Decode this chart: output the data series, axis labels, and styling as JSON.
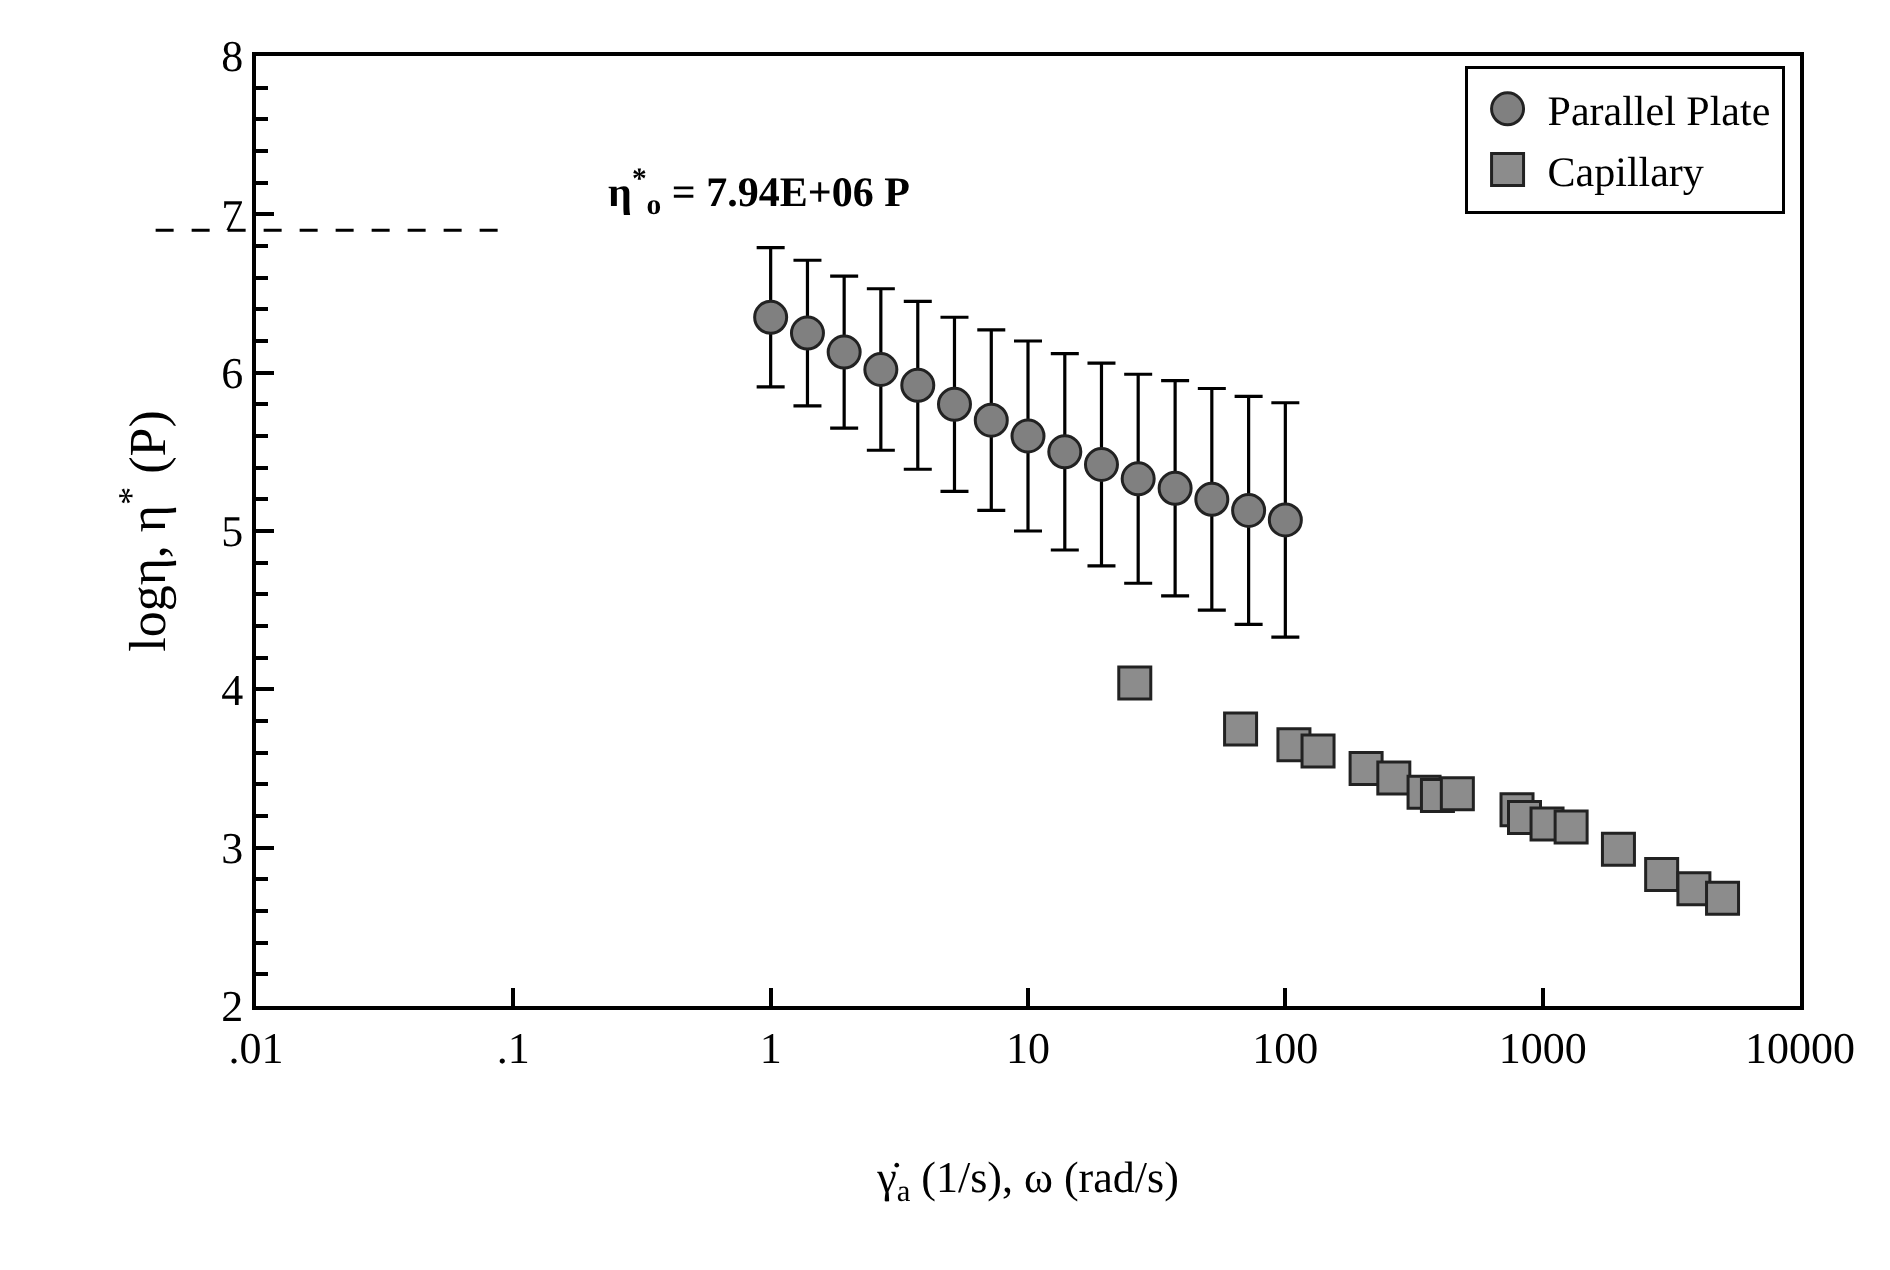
{
  "chart_data": {
    "type": "scatter",
    "xlabel": "γ̇$_{a}$ (1/s), ω (rad/s)",
    "ylabel": "logη, η$^{*}$ (P)",
    "log": "x",
    "xlim": [
      0.01,
      10000
    ],
    "ylim": [
      2,
      8
    ],
    "xticks": [
      {
        "value": 0.01,
        "label": ".01"
      },
      {
        "value": 0.1,
        "label": ".1"
      },
      1,
      10,
      100,
      1000,
      10000
    ],
    "yticks": [
      2,
      3,
      4,
      5,
      6,
      7,
      8
    ],
    "legend": "top right",
    "annotations": [
      "η$^{*}$$_{o}$ = 7.94E+06 P"
    ],
    "ref_lines": [
      {
        "axis": "y",
        "value": 6.9,
        "line_style": "dashed",
        "color": "#000000"
      }
    ],
    "series": [
      {
        "name": "Parallel Plate",
        "color": "#808080",
        "marker": "circle",
        "x": [
          1,
          1.39,
          1.93,
          2.68,
          3.73,
          5.18,
          7.2,
          10,
          13.9,
          19.3,
          26.8,
          37.3,
          51.8,
          72,
          100
        ],
        "values": [
          6.35,
          6.25,
          6.13,
          6.02,
          5.92,
          5.8,
          5.7,
          5.6,
          5.5,
          5.42,
          5.33,
          5.27,
          5.2,
          5.13,
          5.07
        ],
        "errors": [
          0.44,
          0.46,
          0.48,
          0.51,
          0.53,
          0.55,
          0.57,
          0.6,
          0.62,
          0.64,
          0.66,
          0.68,
          0.7,
          0.72,
          0.74
        ]
      },
      {
        "name": "Capillary",
        "color": "#8c8c8c",
        "marker": "square",
        "x": [
          26,
          67,
          108,
          134,
          206,
          264,
          346,
          390,
          466,
          795,
          850,
          1040,
          1290,
          1970,
          2900,
          3870,
          5000
        ],
        "values": [
          4.04,
          3.75,
          3.65,
          3.61,
          3.5,
          3.44,
          3.35,
          3.33,
          3.34,
          3.24,
          3.19,
          3.15,
          3.13,
          2.99,
          2.83,
          2.74,
          2.68
        ]
      }
    ]
  }
}
